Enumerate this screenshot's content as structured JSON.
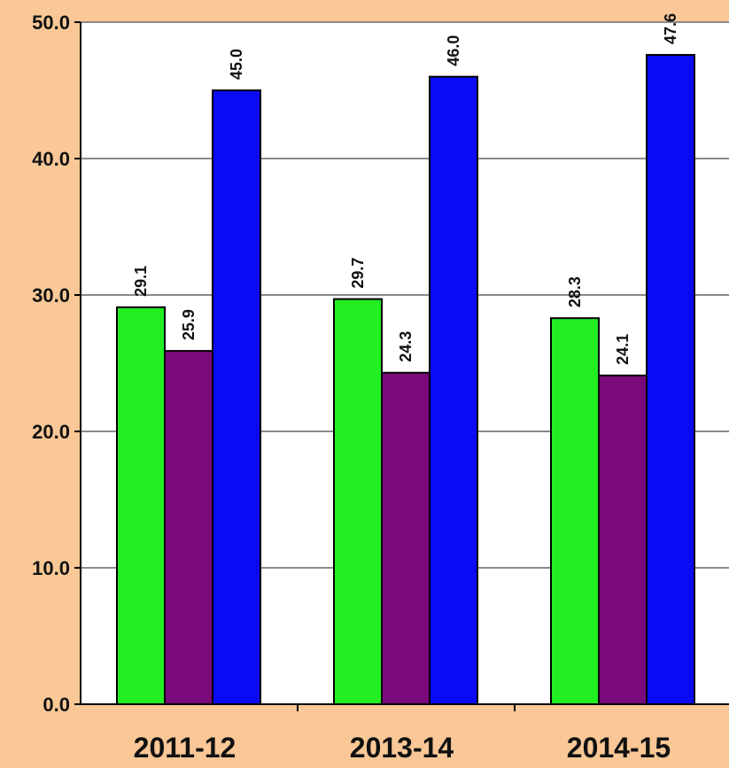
{
  "chart_data": {
    "type": "bar",
    "categories": [
      "2011-12",
      "2013-14",
      "2014-15"
    ],
    "series": [
      {
        "color": "#22ee22",
        "values": [
          29.1,
          29.7,
          28.3
        ],
        "labels": [
          "29.1",
          "29.7",
          "28.3"
        ]
      },
      {
        "color": "#7a0a7a",
        "values": [
          25.9,
          24.3,
          24.1
        ],
        "labels": [
          "25.9",
          "24.3",
          "24.1"
        ]
      },
      {
        "color": "#0a0af5",
        "values": [
          45.0,
          46.0,
          47.6
        ],
        "labels": [
          "45.0",
          "46.0",
          "47.6"
        ]
      }
    ],
    "yticks": [
      "0.0",
      "10.0",
      "20.0",
      "30.0",
      "40.0",
      "50.0"
    ],
    "ylim": [
      0,
      50
    ],
    "grid": true,
    "title": "",
    "xlabel": "",
    "ylabel": ""
  }
}
